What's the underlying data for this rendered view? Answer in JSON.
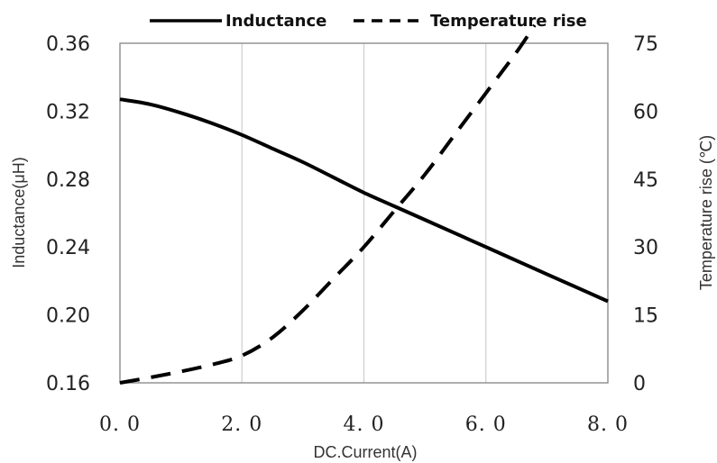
{
  "chart_data": {
    "type": "line",
    "xlabel": "DC.Current(A)",
    "ylabel_left": "Inductance(μH)",
    "ylabel_right": "Temperature rise (℃)",
    "xlim": [
      0,
      8
    ],
    "ylim_left": [
      0.16,
      0.36
    ],
    "ylim_right": [
      0,
      75
    ],
    "x_ticks": [
      0,
      2,
      4,
      6,
      8
    ],
    "x_tick_labels": [
      "0. 0",
      "2. 0",
      "4. 0",
      "6. 0",
      "8. 0"
    ],
    "y_left_ticks": [
      0.16,
      0.2,
      0.24,
      0.28,
      0.32,
      0.36
    ],
    "y_left_tick_labels": [
      "0.16",
      "0.20",
      "0.24",
      "0.28",
      "0.32",
      "0.36"
    ],
    "y_right_ticks": [
      0,
      15,
      30,
      45,
      60,
      75
    ],
    "y_right_tick_labels": [
      "0",
      "15",
      "30",
      "45",
      "60",
      "75"
    ],
    "grid": "vertical",
    "legend_position": "top",
    "series": [
      {
        "name": "Inductance",
        "axis": "left",
        "style": "solid",
        "color": "#000000",
        "x": [
          0,
          0.5,
          1.0,
          1.5,
          2.0,
          2.5,
          3.0,
          3.5,
          4.0,
          4.5,
          5.0,
          5.5,
          6.0,
          6.5,
          7.0,
          7.5,
          8.0
        ],
        "y": [
          0.327,
          0.324,
          0.319,
          0.313,
          0.306,
          0.298,
          0.29,
          0.281,
          0.272,
          0.264,
          0.256,
          0.248,
          0.24,
          0.232,
          0.224,
          0.216,
          0.208
        ]
      },
      {
        "name": "Temperature rise",
        "axis": "right",
        "style": "dashed",
        "color": "#000000",
        "x": [
          0,
          0.5,
          1.0,
          1.5,
          2.0,
          2.5,
          3.0,
          3.5,
          4.0,
          4.5,
          5.0,
          5.5,
          6.0,
          6.5,
          6.8
        ],
        "y": [
          0,
          1.2,
          2.5,
          4.0,
          6.0,
          10.0,
          16.0,
          23.0,
          30.0,
          38.0,
          46.0,
          55.0,
          64.0,
          73.0,
          79.0
        ]
      }
    ]
  }
}
